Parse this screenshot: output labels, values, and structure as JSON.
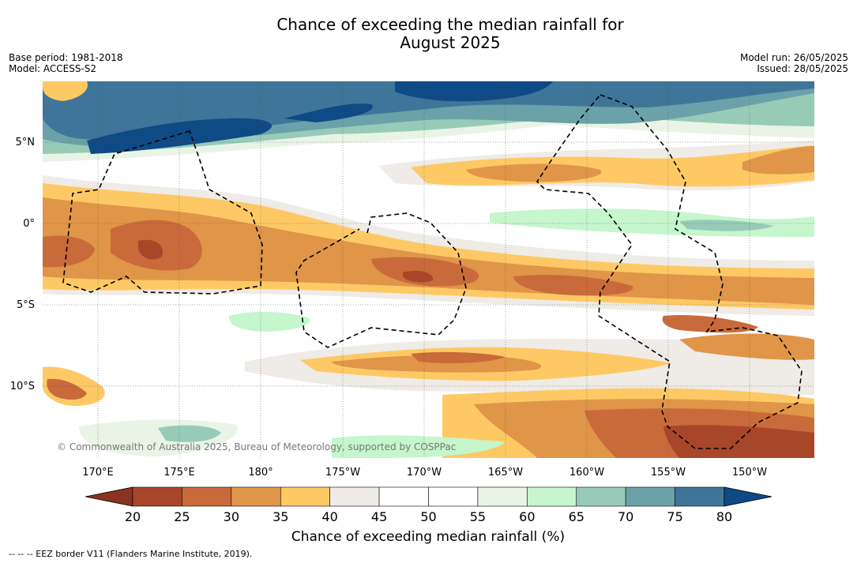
{
  "title_line1": "Chance of exceeding the median rainfall for",
  "title_line2": "August 2025",
  "base_period": "Base period: 1981-2018",
  "model": "Model: ACCESS-S2",
  "model_run": "Model run: 26/05/2025",
  "issued": "Issued: 28/05/2025",
  "lat_labels": [
    "5°N",
    "0°",
    "5°S",
    "10°S"
  ],
  "lon_labels": [
    "170°E",
    "175°E",
    "180°",
    "175°W",
    "170°W",
    "165°W",
    "160°W",
    "155°W",
    "150°W"
  ],
  "copyright": "© Commonwealth of Australia 2025, Bureau of Meteorology, supported by COSPPac",
  "colorbar": {
    "ticks": [
      "20",
      "25",
      "30",
      "35",
      "40",
      "45",
      "50",
      "55",
      "60",
      "65",
      "70",
      "75",
      "80"
    ],
    "colors": [
      "#a8462a",
      "#c96a3a",
      "#e09548",
      "#fec965",
      "#efebe6",
      "#ffffff",
      "#ffffff",
      "#e9f4e7",
      "#c6f6cc",
      "#97cbb8",
      "#6ba1a8",
      "#3f7598"
    ],
    "low_color": "#8b3321",
    "high_color": "#0e4a85",
    "title": "Chance of exceeding median rainfall (%)"
  },
  "footnote": "--  --  -- EEZ border V11 (Flanders Marine Institute, 2019)."
}
